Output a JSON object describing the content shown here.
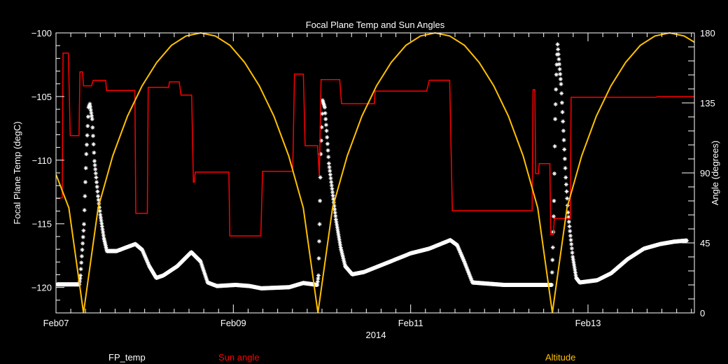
{
  "chart_data": {
    "type": "line",
    "title": "Focal Plane Temp and Sun Angles",
    "xlabel": "2014",
    "ylabel": "Focal Plane Temp (degC)",
    "y2label": "Angle (degrees)",
    "x_unit": "days since Feb07 00:00",
    "xlim": [
      0,
      7.2
    ],
    "ylim": [
      -122,
      -100
    ],
    "y2lim": [
      0,
      180
    ],
    "x_ticks": [
      {
        "value": 0,
        "label": "Feb07"
      },
      {
        "value": 2,
        "label": "Feb09"
      },
      {
        "value": 4,
        "label": "Feb11"
      },
      {
        "value": 6,
        "label": "Feb13"
      }
    ],
    "y_ticks": [
      -100,
      -105,
      -110,
      -115,
      -120
    ],
    "y2_ticks": [
      0,
      45,
      90,
      135,
      180
    ],
    "legend_placement": "bottom",
    "colors": {
      "FP_temp": "#ffffff",
      "Sun angle": "#ff0000",
      "Altitude": "#ffc000"
    },
    "series": [
      {
        "name": "FP_temp",
        "axis": "left",
        "marker": "asterisk",
        "points": [
          [
            0.013,
            -119.76
          ],
          [
            0.263,
            -119.76
          ],
          [
            0.276,
            -119.06
          ],
          [
            0.316,
            -115.03
          ],
          [
            0.342,
            -109.52
          ],
          [
            0.368,
            -105.85
          ],
          [
            0.382,
            -105.58
          ],
          [
            0.408,
            -106.77
          ],
          [
            0.434,
            -110.07
          ],
          [
            0.453,
            -111.36
          ],
          [
            0.474,
            -112.83
          ],
          [
            0.5,
            -114.29
          ],
          [
            0.54,
            -116.13
          ],
          [
            0.574,
            -117.14
          ],
          [
            0.684,
            -117.14
          ],
          [
            0.79,
            -116.86
          ],
          [
            0.895,
            -116.59
          ],
          [
            0.973,
            -117.05
          ],
          [
            1.052,
            -118.33
          ],
          [
            1.131,
            -119.25
          ],
          [
            1.21,
            -119.06
          ],
          [
            1.368,
            -118.33
          ],
          [
            1.526,
            -117.23
          ],
          [
            1.631,
            -117.96
          ],
          [
            1.71,
            -119.61
          ],
          [
            1.815,
            -119.89
          ],
          [
            2.026,
            -119.8
          ],
          [
            2.184,
            -119.89
          ],
          [
            2.315,
            -120.07
          ],
          [
            2.631,
            -119.98
          ],
          [
            2.789,
            -119.65
          ],
          [
            2.947,
            -119.8
          ],
          [
            2.96,
            -119.06
          ],
          [
            2.973,
            -115.03
          ],
          [
            2.986,
            -109.52
          ],
          [
            3.007,
            -105.3
          ],
          [
            3.031,
            -105.85
          ],
          [
            3.052,
            -107.69
          ],
          [
            3.078,
            -110.26
          ],
          [
            3.104,
            -111.72
          ],
          [
            3.157,
            -114.66
          ],
          [
            3.21,
            -116.86
          ],
          [
            3.262,
            -118.33
          ],
          [
            3.341,
            -118.97
          ],
          [
            3.473,
            -118.79
          ],
          [
            3.736,
            -118.06
          ],
          [
            4.0,
            -117.32
          ],
          [
            4.21,
            -116.95
          ],
          [
            4.447,
            -116.28
          ],
          [
            4.525,
            -116.68
          ],
          [
            4.604,
            -117.96
          ],
          [
            4.697,
            -119.61
          ],
          [
            5.052,
            -119.8
          ],
          [
            5.315,
            -119.8
          ],
          [
            5.525,
            -119.8
          ],
          [
            5.591,
            -119.8
          ],
          [
            5.604,
            -116.86
          ],
          [
            5.617,
            -113.2
          ],
          [
            5.63,
            -106.77
          ],
          [
            5.643,
            -103.28
          ],
          [
            5.657,
            -100.9
          ],
          [
            5.696,
            -104.02
          ],
          [
            5.723,
            -107.69
          ],
          [
            5.749,
            -111.36
          ],
          [
            5.775,
            -114.11
          ],
          [
            5.802,
            -115.94
          ],
          [
            5.828,
            -117.6
          ],
          [
            5.867,
            -119.25
          ],
          [
            5.907,
            -119.61
          ],
          [
            6.104,
            -119.43
          ],
          [
            6.262,
            -118.88
          ],
          [
            6.446,
            -117.78
          ],
          [
            6.631,
            -116.95
          ],
          [
            6.815,
            -116.59
          ],
          [
            6.973,
            -116.4
          ],
          [
            7.118,
            -116.31
          ]
        ]
      },
      {
        "name": "Sun angle",
        "axis": "right",
        "points": [
          [
            0,
            74
          ],
          [
            0.07,
            74
          ],
          [
            0.08,
            167
          ],
          [
            0.14,
            167
          ],
          [
            0.16,
            114
          ],
          [
            0.26,
            114
          ],
          [
            0.27,
            155
          ],
          [
            0.3,
            155
          ],
          [
            0.31,
            146
          ],
          [
            0.4,
            146
          ],
          [
            0.42,
            149.5
          ],
          [
            0.56,
            149.5
          ],
          [
            0.57,
            143
          ],
          [
            0.89,
            143
          ],
          [
            0.9,
            64
          ],
          [
            1.03,
            64
          ],
          [
            1.04,
            145
          ],
          [
            1.27,
            145
          ],
          [
            1.28,
            148.5
          ],
          [
            1.39,
            148.5
          ],
          [
            1.41,
            140
          ],
          [
            1.53,
            140
          ],
          [
            1.55,
            84
          ],
          [
            1.56,
            84
          ],
          [
            1.57,
            90.5
          ],
          [
            1.95,
            90.5
          ],
          [
            1.96,
            49.5
          ],
          [
            2.31,
            49.5
          ],
          [
            2.33,
            91
          ],
          [
            2.67,
            91
          ],
          [
            2.69,
            153.5
          ],
          [
            2.79,
            153.5
          ],
          [
            2.81,
            107.5
          ],
          [
            2.95,
            107.5
          ],
          [
            2.97,
            88
          ],
          [
            2.99,
            150
          ],
          [
            3.2,
            150
          ],
          [
            3.22,
            134.5
          ],
          [
            3.59,
            134.5
          ],
          [
            3.6,
            142.6
          ],
          [
            4.18,
            142.6
          ],
          [
            4.21,
            149.6
          ],
          [
            4.44,
            149.6
          ],
          [
            4.47,
            65.7
          ],
          [
            5.37,
            65.7
          ],
          [
            5.38,
            143.5
          ],
          [
            5.4,
            143.5
          ],
          [
            5.41,
            89.5
          ],
          [
            5.44,
            89.5
          ],
          [
            5.45,
            96
          ],
          [
            5.57,
            96
          ],
          [
            5.58,
            50.4
          ],
          [
            5.61,
            50.4
          ],
          [
            5.62,
            60.7
          ],
          [
            5.8,
            60.7
          ],
          [
            5.81,
            138.6
          ],
          [
            6.77,
            138.6
          ],
          [
            6.78,
            139
          ],
          [
            7.2,
            139
          ]
        ]
      },
      {
        "name": "Altitude",
        "axis": "right",
        "points": [
          [
            0,
            89
          ],
          [
            0.145,
            67.5
          ],
          [
            0.31,
            0
          ],
          [
            0.475,
            67.5
          ],
          [
            0.64,
            101
          ],
          [
            0.806,
            126.5
          ],
          [
            0.971,
            146
          ],
          [
            1.136,
            161
          ],
          [
            1.302,
            172
          ],
          [
            1.467,
            178
          ],
          [
            1.632,
            180
          ],
          [
            1.797,
            178
          ],
          [
            1.963,
            172
          ],
          [
            2.128,
            161
          ],
          [
            2.293,
            146
          ],
          [
            2.458,
            126.5
          ],
          [
            2.624,
            101
          ],
          [
            2.789,
            67.5
          ],
          [
            2.954,
            0
          ],
          [
            3.119,
            67.5
          ],
          [
            3.285,
            101
          ],
          [
            3.45,
            126.5
          ],
          [
            3.615,
            146
          ],
          [
            3.78,
            161
          ],
          [
            3.946,
            172
          ],
          [
            4.111,
            178
          ],
          [
            4.276,
            180
          ],
          [
            4.441,
            178
          ],
          [
            4.607,
            172
          ],
          [
            4.772,
            161
          ],
          [
            4.937,
            146
          ],
          [
            5.102,
            126.5
          ],
          [
            5.268,
            101
          ],
          [
            5.433,
            67.5
          ],
          [
            5.598,
            0
          ],
          [
            5.763,
            67.5
          ],
          [
            5.929,
            101
          ],
          [
            6.094,
            126.5
          ],
          [
            6.259,
            146
          ],
          [
            6.424,
            161
          ],
          [
            6.59,
            172
          ],
          [
            6.755,
            178
          ],
          [
            6.92,
            180
          ],
          [
            7.085,
            178
          ],
          [
            7.2,
            174
          ]
        ]
      }
    ]
  },
  "legend": {
    "fp_temp": "FP_temp",
    "sun_angle": "Sun angle",
    "altitude": "Altitude"
  }
}
